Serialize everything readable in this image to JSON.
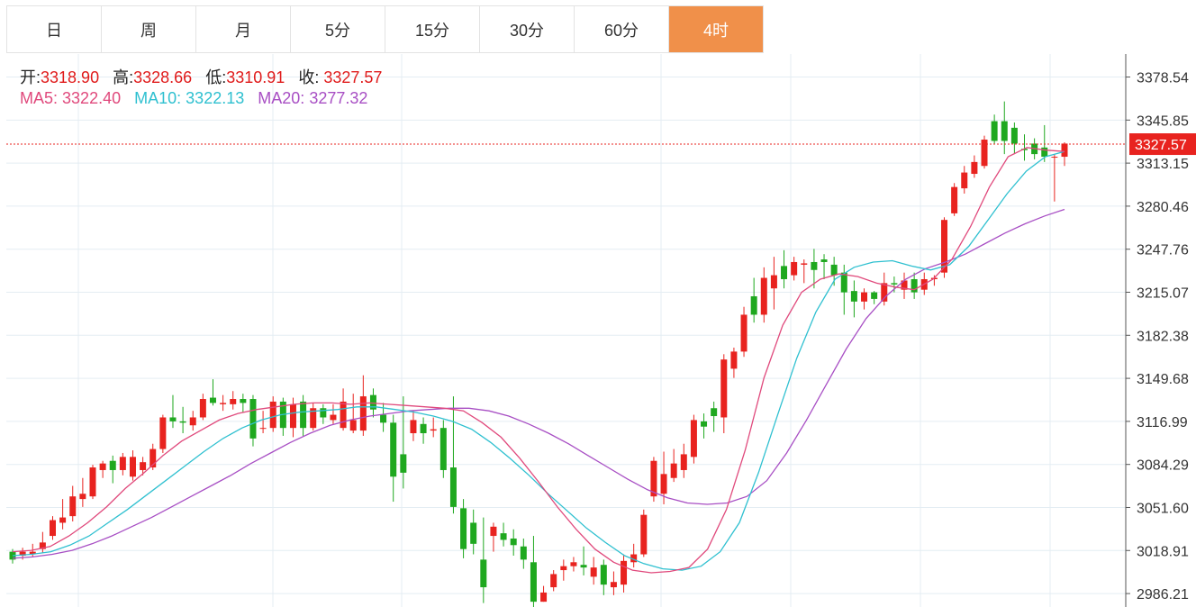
{
  "tabs": [
    {
      "label": "日",
      "active": false
    },
    {
      "label": "周",
      "active": false
    },
    {
      "label": "月",
      "active": false
    },
    {
      "label": "5分",
      "active": false
    },
    {
      "label": "15分",
      "active": false
    },
    {
      "label": "30分",
      "active": false
    },
    {
      "label": "60分",
      "active": false
    },
    {
      "label": "4时",
      "active": true
    }
  ],
  "info": {
    "open_label": "开:",
    "open": "3318.90",
    "high_label": "高:",
    "high": "3328.66",
    "low_label": "低:",
    "low": "3310.91",
    "close_label": "收:",
    "close": "3327.57",
    "ma5_label": "MA5:",
    "ma5": "3322.40",
    "ma10_label": "MA10:",
    "ma10": "3322.13",
    "ma20_label": "MA20:",
    "ma20": "3277.32"
  },
  "colors": {
    "up": "#e8231f",
    "down": "#1fa81f",
    "ma5": "#e0497c",
    "ma10": "#2fc0d0",
    "ma20": "#a84fc4",
    "grid": "#e4edf3",
    "accent": "#f0904a",
    "last_price": "#e8231f"
  },
  "chart_data": {
    "type": "candlestick",
    "y_ticks": [
      "3378.54",
      "3345.85",
      "3313.15",
      "3280.46",
      "3247.76",
      "3215.07",
      "3182.38",
      "3149.68",
      "3116.99",
      "3084.29",
      "3051.60",
      "3018.91",
      "2986.21"
    ],
    "ylim": [
      2976,
      3396
    ],
    "last_price": 3327.57,
    "last_price_label": "3327.57",
    "grid": true,
    "candles": [
      [
        3018,
        3012,
        3020,
        3009
      ],
      [
        3015,
        3018,
        3021,
        3012
      ],
      [
        3016,
        3018,
        3024,
        3014
      ],
      [
        3020,
        3025,
        3033,
        3017
      ],
      [
        3030,
        3042,
        3045,
        3027
      ],
      [
        3040,
        3044,
        3058,
        3035
      ],
      [
        3045,
        3060,
        3068,
        3041
      ],
      [
        3058,
        3062,
        3074,
        3052
      ],
      [
        3060,
        3082,
        3084,
        3058
      ],
      [
        3080,
        3085,
        3087,
        3074
      ],
      [
        3087,
        3080,
        3091,
        3070
      ],
      [
        3080,
        3090,
        3093,
        3076
      ],
      [
        3075,
        3090,
        3095,
        3072
      ],
      [
        3080,
        3086,
        3090,
        3076
      ],
      [
        3082,
        3096,
        3100,
        3080
      ],
      [
        3096,
        3120,
        3122,
        3093
      ],
      [
        3120,
        3117,
        3137,
        3112
      ],
      [
        3117,
        3116,
        3128,
        3108
      ],
      [
        3114,
        3120,
        3125,
        3110
      ],
      [
        3120,
        3134,
        3138,
        3118
      ],
      [
        3135,
        3131,
        3149,
        3129
      ],
      [
        3130,
        3131,
        3137,
        3125
      ],
      [
        3130,
        3134,
        3140,
        3126
      ],
      [
        3134,
        3131,
        3138,
        3124
      ],
      [
        3134,
        3104,
        3137,
        3098
      ],
      [
        3112,
        3112,
        3125,
        3108
      ],
      [
        3112,
        3132,
        3136,
        3109
      ],
      [
        3132,
        3112,
        3135,
        3106
      ],
      [
        3112,
        3130,
        3135,
        3105
      ],
      [
        3132,
        3112,
        3137,
        3106
      ],
      [
        3112,
        3127,
        3131,
        3110
      ],
      [
        3127,
        3120,
        3130,
        3115
      ],
      [
        3118,
        3122,
        3130,
        3115
      ],
      [
        3112,
        3132,
        3142,
        3110
      ],
      [
        3110,
        3118,
        3138,
        3108
      ],
      [
        3110,
        3136,
        3152,
        3106
      ],
      [
        3137,
        3126,
        3142,
        3120
      ],
      [
        3122,
        3116,
        3131,
        3109
      ],
      [
        3116,
        3075,
        3122,
        3056
      ],
      [
        3092,
        3078,
        3136,
        3066
      ],
      [
        3108,
        3118,
        3125,
        3102
      ],
      [
        3115,
        3108,
        3120,
        3100
      ],
      [
        3110,
        3111,
        3120,
        3105
      ],
      [
        3112,
        3080,
        3118,
        3074
      ],
      [
        3082,
        3052,
        3136,
        3047
      ],
      [
        3051,
        3020,
        3058,
        3013
      ],
      [
        3040,
        3024,
        3050,
        3016
      ],
      [
        3012,
        2991,
        3044,
        2979
      ],
      [
        3030,
        3037,
        3040,
        3018
      ],
      [
        3032,
        3027,
        3040,
        3022
      ],
      [
        3028,
        3023,
        3035,
        3015
      ],
      [
        3022,
        3012,
        3028,
        3005
      ],
      [
        3010,
        2980,
        3030,
        2976
      ],
      [
        2980,
        2987,
        2992,
        2980
      ],
      [
        2991,
        3001,
        3004,
        2988
      ],
      [
        3004,
        3007,
        3012,
        2996
      ],
      [
        3007,
        3010,
        3014,
        3003
      ],
      [
        3008,
        3006,
        3022,
        3000
      ],
      [
        2999,
        3006,
        3014,
        2993
      ],
      [
        3008,
        2993,
        3012,
        2985
      ],
      [
        2991,
        2995,
        3003,
        2985
      ],
      [
        2993,
        3011,
        3016,
        2987
      ],
      [
        3010,
        3016,
        3024,
        3006
      ],
      [
        3016,
        3046,
        3050,
        3014
      ],
      [
        3060,
        3087,
        3090,
        3056
      ],
      [
        3062,
        3077,
        3094,
        3054
      ],
      [
        3074,
        3085,
        3096,
        3071
      ],
      [
        3080,
        3092,
        3100,
        3074
      ],
      [
        3090,
        3118,
        3122,
        3085
      ],
      [
        3117,
        3113,
        3123,
        3104
      ],
      [
        3127,
        3121,
        3132,
        3109
      ],
      [
        3120,
        3164,
        3168,
        3108
      ],
      [
        3157,
        3170,
        3173,
        3150
      ],
      [
        3170,
        3198,
        3204,
        3166
      ],
      [
        3212,
        3198,
        3226,
        3192
      ],
      [
        3198,
        3226,
        3234,
        3192
      ],
      [
        3218,
        3228,
        3242,
        3202
      ],
      [
        3235,
        3225,
        3247,
        3218
      ],
      [
        3228,
        3238,
        3242,
        3224
      ],
      [
        3236,
        3237,
        3240,
        3222
      ],
      [
        3238,
        3232,
        3248,
        3218
      ],
      [
        3240,
        3238,
        3244,
        3225
      ],
      [
        3236,
        3228,
        3242,
        3220
      ],
      [
        3230,
        3215,
        3236,
        3198
      ],
      [
        3216,
        3208,
        3224,
        3196
      ],
      [
        3208,
        3215,
        3218,
        3202
      ],
      [
        3215,
        3210,
        3216,
        3206
      ],
      [
        3208,
        3222,
        3230,
        3205
      ],
      [
        3222,
        3221,
        3227,
        3215
      ],
      [
        3217,
        3224,
        3230,
        3210
      ],
      [
        3225,
        3215,
        3230,
        3210
      ],
      [
        3217,
        3225,
        3230,
        3213
      ],
      [
        3225,
        3226,
        3228,
        3220
      ],
      [
        3230,
        3270,
        3272,
        3226
      ],
      [
        3275,
        3295,
        3298,
        3273
      ],
      [
        3294,
        3306,
        3311,
        3290
      ],
      [
        3305,
        3314,
        3319,
        3302
      ],
      [
        3311,
        3331,
        3334,
        3309
      ],
      [
        3345,
        3330,
        3350,
        3328
      ],
      [
        3345,
        3330,
        3360,
        3320
      ],
      [
        3340,
        3328,
        3344,
        3320
      ],
      [
        3324,
        3323,
        3335,
        3315
      ],
      [
        3328,
        3320,
        3332,
        3316
      ],
      [
        3325,
        3318,
        3342,
        3314
      ],
      [
        3318,
        3318,
        3320,
        3284
      ],
      [
        3318,
        3328,
        3329,
        3311
      ]
    ],
    "ma5": [
      3018,
      3019,
      3022,
      3030,
      3040,
      3052,
      3066,
      3078,
      3091,
      3102,
      3110,
      3118,
      3123,
      3126,
      3128,
      3130,
      3131,
      3131,
      3130,
      3131,
      3130,
      3129,
      3128,
      3127,
      3125,
      3116,
      3105,
      3089,
      3071,
      3052,
      3035,
      3020,
      3010,
      3004,
      3002,
      3003,
      3006,
      3020,
      3050,
      3095,
      3150,
      3190,
      3215,
      3225,
      3229,
      3227,
      3222,
      3219,
      3217,
      3225,
      3240,
      3265,
      3295,
      3318,
      3325,
      3323,
      3322
    ],
    "ma10": [
      3015,
      3016,
      3018,
      3023,
      3030,
      3040,
      3050,
      3061,
      3072,
      3083,
      3094,
      3104,
      3112,
      3118,
      3122,
      3124,
      3125,
      3126,
      3128,
      3128,
      3126,
      3124,
      3121,
      3117,
      3111,
      3101,
      3089,
      3076,
      3062,
      3049,
      3036,
      3025,
      3015,
      3009,
      3005,
      3004,
      3007,
      3018,
      3040,
      3078,
      3122,
      3165,
      3200,
      3225,
      3234,
      3238,
      3239,
      3235,
      3232,
      3236,
      3250,
      3270,
      3290,
      3307,
      3318,
      3322
    ],
    "ma20": [
      3013,
      3014,
      3016,
      3019,
      3024,
      3030,
      3037,
      3044,
      3052,
      3060,
      3068,
      3076,
      3085,
      3093,
      3101,
      3108,
      3114,
      3118,
      3121,
      3123,
      3125,
      3126,
      3127,
      3127,
      3125,
      3121,
      3115,
      3108,
      3100,
      3091,
      3082,
      3073,
      3065,
      3059,
      3055,
      3054,
      3055,
      3060,
      3072,
      3093,
      3118,
      3145,
      3172,
      3195,
      3212,
      3225,
      3233,
      3238,
      3244,
      3252,
      3260,
      3267,
      3273,
      3278
    ]
  }
}
